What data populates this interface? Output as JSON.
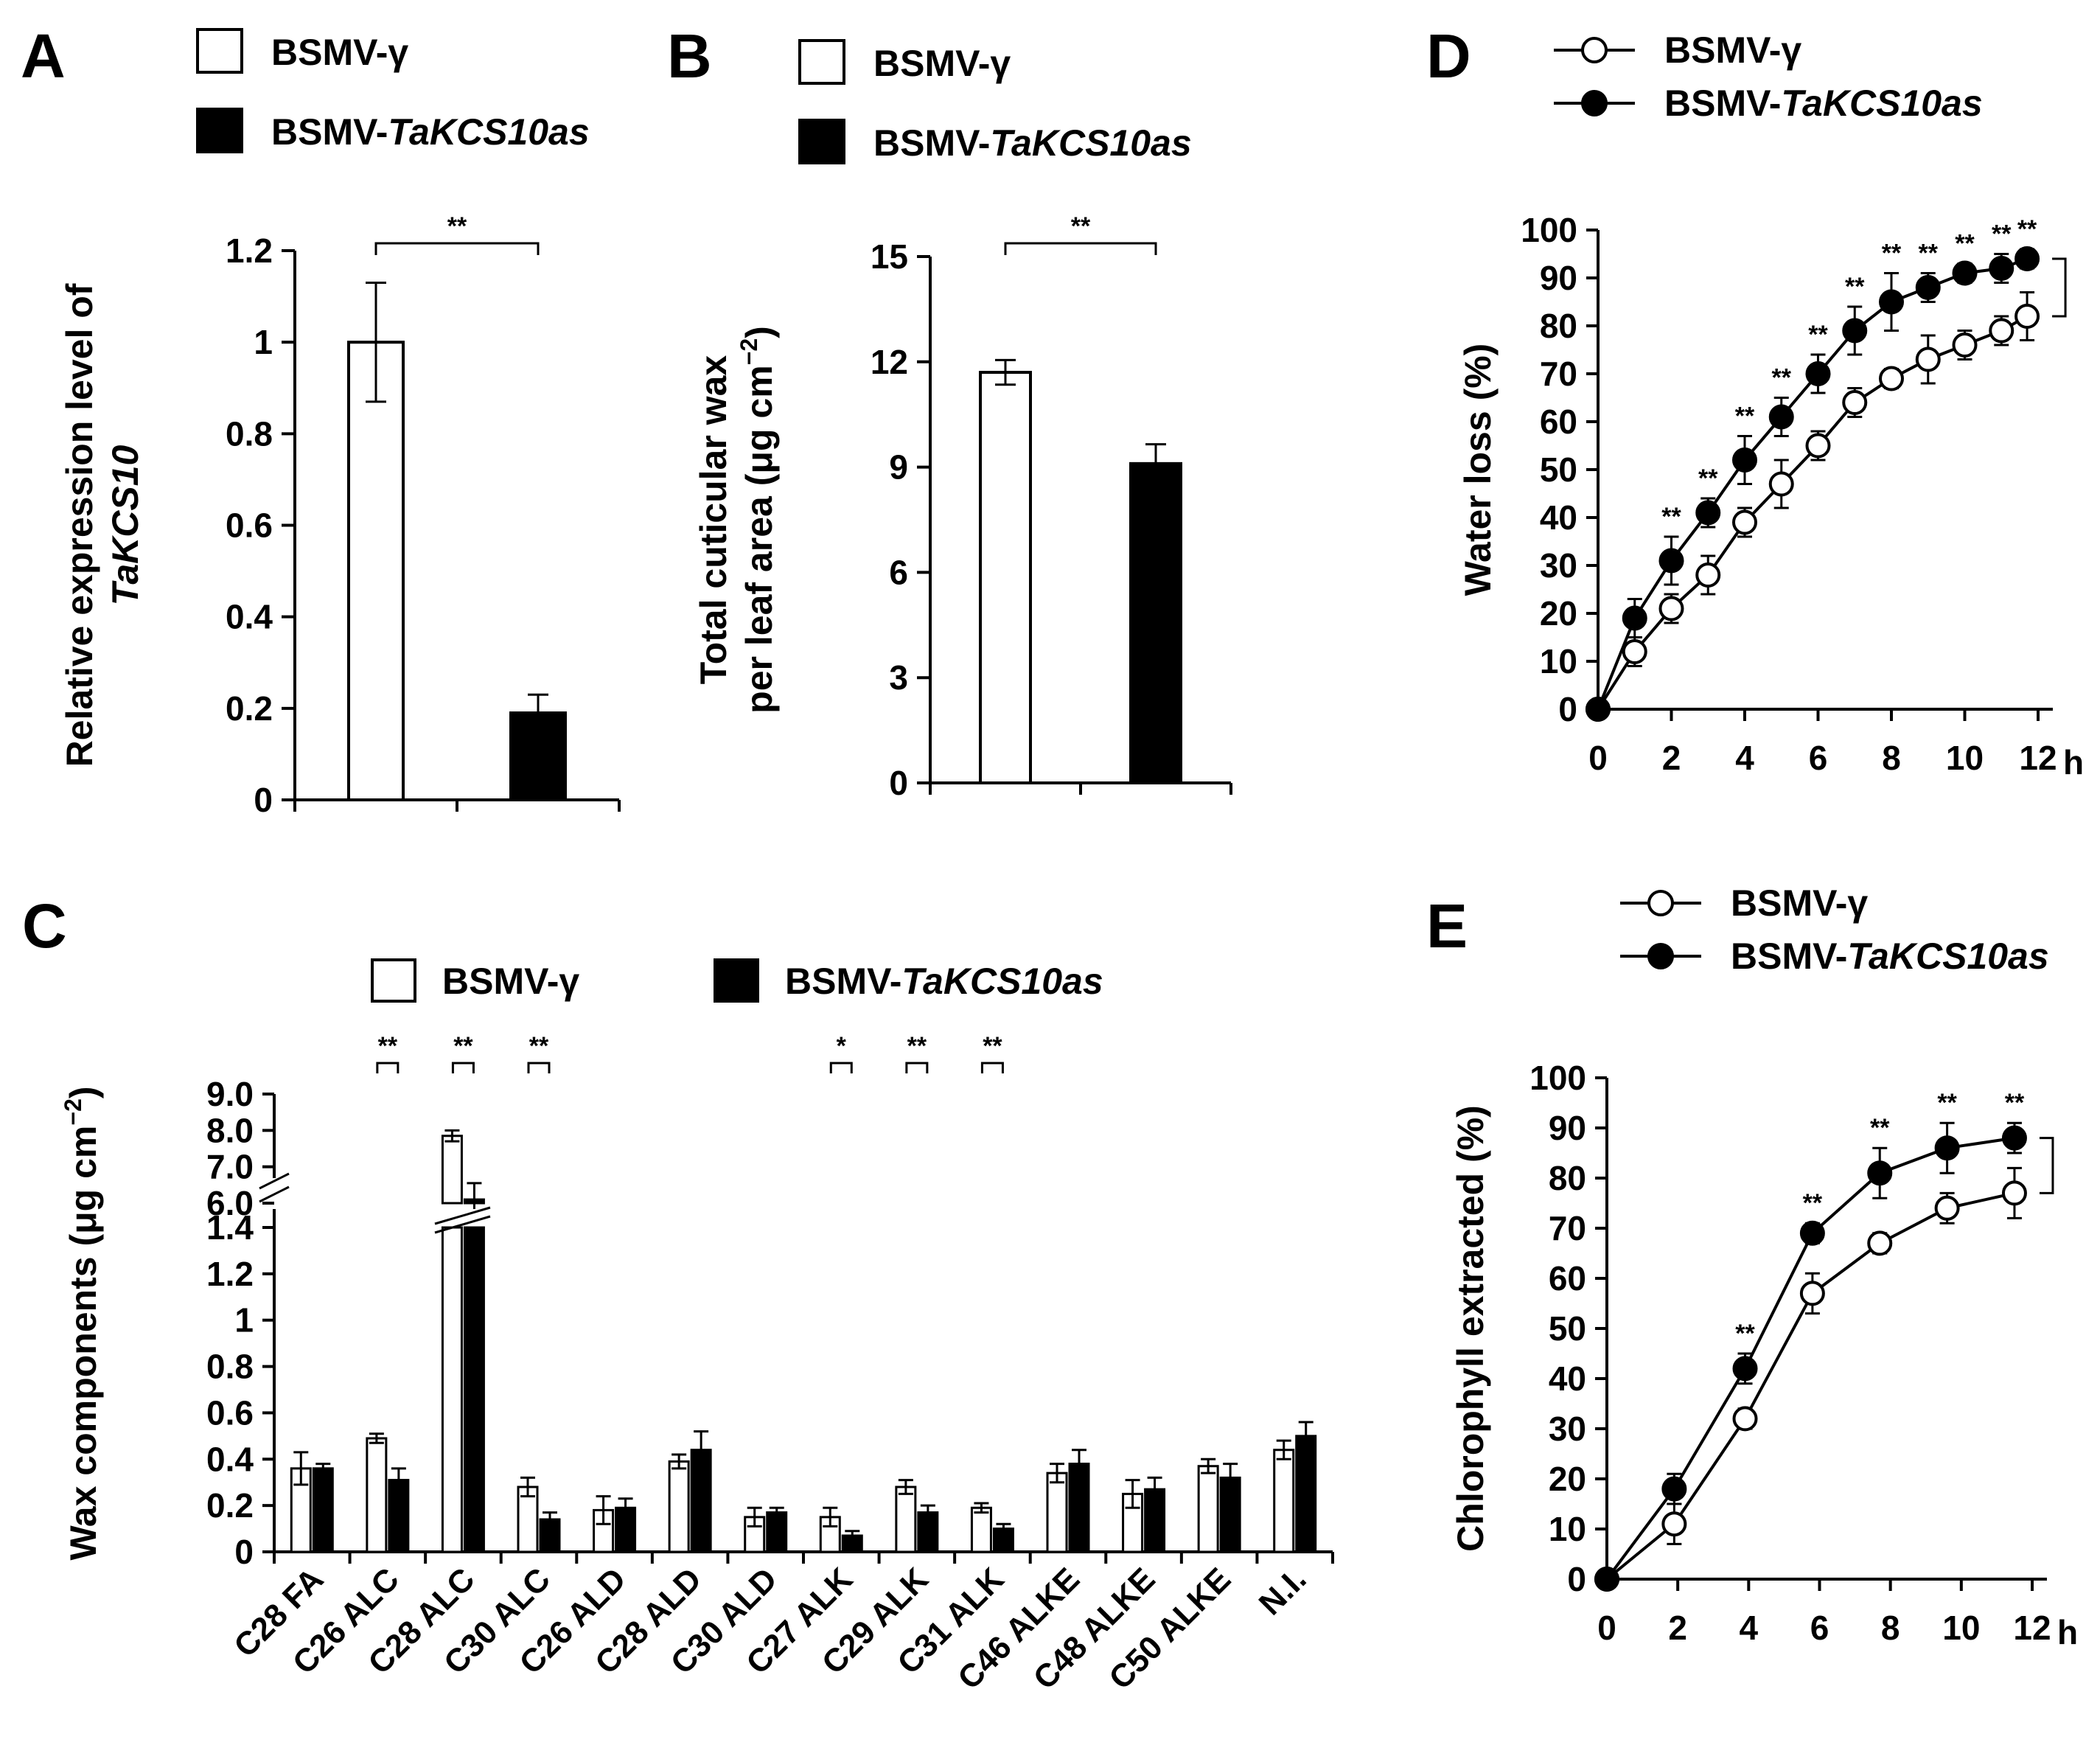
{
  "chart_data": [
    {
      "panel": "A",
      "type": "bar",
      "categories": [
        "BSMV-γ",
        "BSMV-TaKCS10as"
      ],
      "values": [
        1.0,
        0.19
      ],
      "errors": [
        0.13,
        0.04
      ],
      "ylabel_line1": "Relative expression level of",
      "ylabel_line2": "TaKCS10",
      "ylim": [
        0,
        1.2
      ],
      "yticks": [
        "0",
        "0.2",
        "0.4",
        "0.6",
        "0.8",
        "1",
        "1.2"
      ],
      "significance": "**",
      "legend": [
        {
          "prefix": "BSMV-",
          "italic": "γ",
          "italic_flag": false,
          "fill": "#ffffff"
        },
        {
          "prefix": "BSMV-",
          "italic": "TaKCS10as",
          "italic_flag": true,
          "fill": "#000000"
        }
      ]
    },
    {
      "panel": "B",
      "type": "bar",
      "categories": [
        "BSMV-γ",
        "BSMV-TaKCS10as"
      ],
      "values": [
        11.7,
        9.1
      ],
      "errors": [
        0.35,
        0.55
      ],
      "ylabel_line1": "Total cuticular wax",
      "ylabel_line2": "per leaf area  (μg cm",
      "ylabel_sup": "−2",
      "ylabel_close": ")",
      "ylim": [
        0,
        15
      ],
      "yticks": [
        "0",
        "3",
        "6",
        "9",
        "12",
        "15"
      ],
      "significance": "**",
      "legend": [
        {
          "prefix": "BSMV-",
          "italic": "γ",
          "italic_flag": false,
          "fill": "#ffffff"
        },
        {
          "prefix": "BSMV-",
          "italic": "TaKCS10as",
          "italic_flag": true,
          "fill": "#000000"
        }
      ]
    },
    {
      "panel": "C",
      "type": "bar",
      "categories": [
        "C28 FA",
        "C26 ALC",
        "C28 ALC",
        "C30 ALC",
        "C26 ALD",
        "C28 ALD",
        "C30 ALD",
        "C27 ALK",
        "C29 ALK",
        "C31 ALK",
        "C46 ALKE",
        "C48 ALKE",
        "C50 ALKE",
        "N.I."
      ],
      "series": [
        {
          "name": "BSMV-γ",
          "values": [
            0.36,
            0.49,
            7.85,
            0.28,
            0.18,
            0.39,
            0.15,
            0.15,
            0.28,
            0.19,
            0.34,
            0.25,
            0.37,
            0.44
          ],
          "errors": [
            0.07,
            0.02,
            0.15,
            0.04,
            0.06,
            0.03,
            0.04,
            0.04,
            0.03,
            0.02,
            0.04,
            0.06,
            0.03,
            0.04
          ]
        },
        {
          "name": "BSMV-TaKCS10as",
          "values": [
            0.36,
            0.31,
            6.1,
            0.14,
            0.19,
            0.44,
            0.17,
            0.07,
            0.17,
            0.1,
            0.38,
            0.27,
            0.32,
            0.5
          ],
          "errors": [
            0.02,
            0.05,
            0.45,
            0.03,
            0.04,
            0.08,
            0.02,
            0.02,
            0.03,
            0.02,
            0.06,
            0.05,
            0.06,
            0.06
          ]
        }
      ],
      "significance": {
        "C26 ALC": "**",
        "C28 ALC": "**",
        "C30 ALC": "**",
        "C27 ALK": "*",
        "C29 ALK": "**",
        "C31 ALK": "**"
      },
      "ylabel": "Wax components (μg cm",
      "ylabel_sup": "−2",
      "ylabel_close": ")",
      "ylim_lower": [
        0,
        1.4
      ],
      "ylim_upper": [
        6.0,
        9.0
      ],
      "yticks_lower": [
        "0",
        "0.2",
        "0.4",
        "0.6",
        "0.8",
        "1",
        "1.2",
        "1.4"
      ],
      "yticks_upper": [
        "6.0",
        "7.0",
        "8.0",
        "9.0"
      ],
      "legend": [
        {
          "prefix": "BSMV-",
          "italic": "γ",
          "italic_flag": false,
          "fill": "#ffffff"
        },
        {
          "prefix": "BSMV-",
          "italic": "TaKCS10as",
          "italic_flag": true,
          "fill": "#000000"
        }
      ]
    },
    {
      "panel": "D",
      "type": "line",
      "x": [
        0,
        1,
        2,
        3,
        4,
        5,
        6,
        7,
        8,
        9,
        10,
        11,
        11.7
      ],
      "series": [
        {
          "name": "BSMV-γ",
          "marker": "open",
          "values": [
            0,
            12,
            21,
            28,
            39,
            47,
            55,
            64,
            69,
            73,
            76,
            79,
            82
          ],
          "errors": [
            0,
            3,
            3,
            4,
            3,
            5,
            3,
            3,
            2,
            5,
            3,
            3,
            5
          ]
        },
        {
          "name": "BSMV-TaKCS10as",
          "marker": "filled",
          "values": [
            0,
            19,
            31,
            41,
            52,
            61,
            70,
            79,
            85,
            88,
            91,
            92,
            94
          ],
          "errors": [
            0,
            4,
            5,
            3,
            5,
            4,
            4,
            5,
            6,
            3,
            2,
            3,
            2
          ]
        }
      ],
      "sig_points": [
        2,
        3,
        4,
        5,
        6,
        7,
        8,
        9,
        10,
        11,
        12
      ],
      "sig_label": "**",
      "ylabel": "Water loss (%)",
      "xunit": "h",
      "xlim": [
        0,
        12
      ],
      "ylim": [
        0,
        100
      ],
      "xticks": [
        "0",
        "2",
        "4",
        "6",
        "8",
        "10",
        "12"
      ],
      "yticks": [
        "0",
        "10",
        "20",
        "30",
        "40",
        "50",
        "60",
        "70",
        "80",
        "90",
        "100"
      ]
    },
    {
      "panel": "E",
      "type": "line",
      "x": [
        0,
        1.9,
        3.9,
        5.8,
        7.7,
        9.6,
        11.5
      ],
      "series": [
        {
          "name": "BSMV-γ",
          "marker": "open",
          "values": [
            0,
            11,
            32,
            57,
            67,
            74,
            77
          ],
          "errors": [
            0,
            4,
            2,
            4,
            2,
            3,
            5
          ]
        },
        {
          "name": "BSMV-TaKCS10as",
          "marker": "filled",
          "values": [
            0,
            18,
            42,
            69,
            81,
            86,
            88
          ],
          "errors": [
            0,
            3,
            3,
            2,
            5,
            5,
            3
          ]
        }
      ],
      "sig_points": [
        2,
        3,
        4,
        5,
        6
      ],
      "sig_label": "**",
      "ylabel": "Chlorophyll extracted (%)",
      "xunit": "h",
      "xlim": [
        0,
        12
      ],
      "ylim": [
        0,
        100
      ],
      "xticks": [
        "0",
        "2",
        "4",
        "6",
        "8",
        "10",
        "12"
      ],
      "yticks": [
        "0",
        "10",
        "20",
        "30",
        "40",
        "50",
        "60",
        "70",
        "80",
        "90",
        "100"
      ]
    }
  ]
}
